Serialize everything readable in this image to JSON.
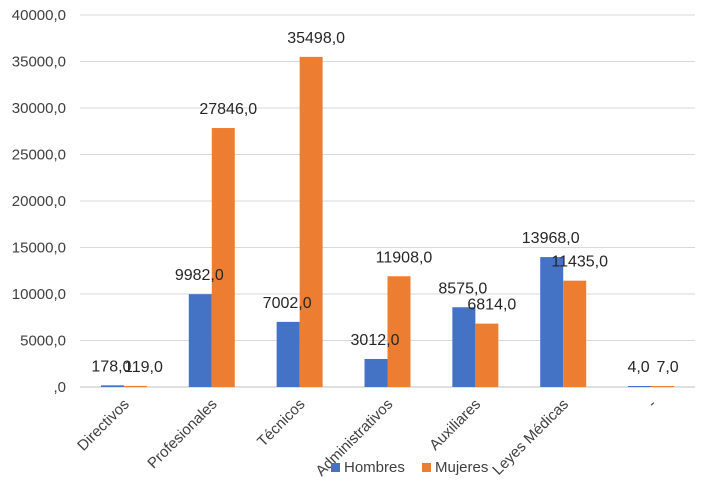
{
  "chart_data": {
    "type": "bar",
    "categories": [
      "Directivos",
      "Profesionales",
      "Técnicos",
      "Administrativos",
      "Auxiliares",
      "Leyes Médicas",
      "-"
    ],
    "series": [
      {
        "name": "Hombres",
        "color": "#4472C4",
        "values": [
          178,
          9982,
          7002,
          3012,
          8575,
          13968,
          4
        ],
        "labels": [
          "178,0",
          "9982,0",
          "7002,0",
          "3012,0",
          "8575,0",
          "13968,0",
          "4,0"
        ]
      },
      {
        "name": "Mujeres",
        "color": "#ED7D31",
        "values": [
          119,
          27846,
          35498,
          11908,
          6814,
          11435,
          7
        ],
        "labels": [
          "119,0",
          "27846,0",
          "35498,0",
          "11908,0",
          "6814,0",
          "11435,0",
          "7,0"
        ]
      }
    ],
    "ylim": [
      0,
      40000
    ],
    "yticks": [
      0,
      5000,
      10000,
      15000,
      20000,
      25000,
      30000,
      35000,
      40000
    ],
    "ytick_labels": [
      ",0",
      "5000,0",
      "10000,0",
      "15000,0",
      "20000,0",
      "25000,0",
      "30000,0",
      "35000,0",
      "40000,0"
    ],
    "grid": true,
    "legend": "bottom",
    "title": "",
    "xlabel": "",
    "ylabel": "",
    "gridline_color": "#D9D9D9"
  }
}
